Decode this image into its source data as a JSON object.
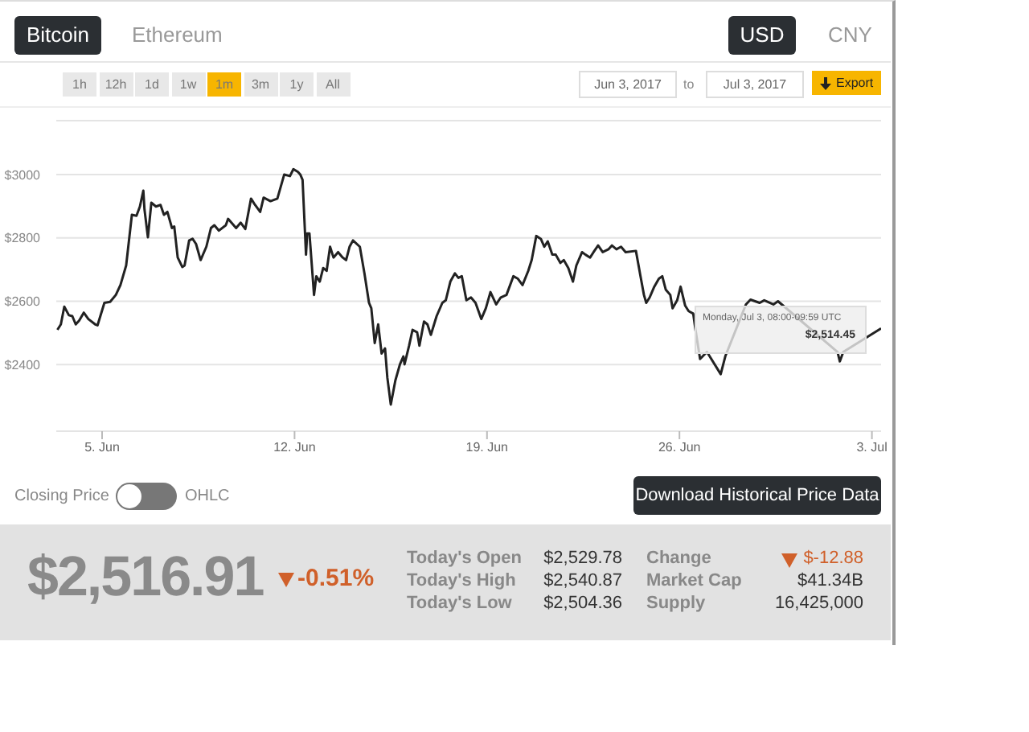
{
  "chart_data": {
    "type": "line",
    "x": [
      "2017-06-03T09:00",
      "2017-06-03T12:00",
      "2017-06-03T15:00",
      "2017-06-03T19:00",
      "2017-06-03T22:00",
      "2017-06-04T01:00",
      "2017-06-04T04:00",
      "2017-06-04T08:00",
      "2017-06-04T12:00",
      "2017-06-04T18:00",
      "2017-06-04T20:00",
      "2017-06-05T02:00",
      "2017-06-05T07:00",
      "2017-06-05T12:00",
      "2017-06-05T16:00",
      "2017-06-05T21:00",
      "2017-06-06T02:00",
      "2017-06-06T06:00",
      "2017-06-06T09:00",
      "2017-06-06T12:00",
      "2017-06-06T13:00",
      "2017-06-06T16:00",
      "2017-06-06T19:00",
      "2017-06-06T23:00",
      "2017-06-07T03:00",
      "2017-06-07T06:00",
      "2017-06-07T09:00",
      "2017-06-07T13:00",
      "2017-06-07T15:00",
      "2017-06-07T18:00",
      "2017-06-07T22:00",
      "2017-06-08T00:00",
      "2017-06-08T04:00",
      "2017-06-08T07:00",
      "2017-06-08T10:00",
      "2017-06-08T14:00",
      "2017-06-08T19:00",
      "2017-06-08T23:00",
      "2017-06-09T02:00",
      "2017-06-09T06:00",
      "2017-06-09T12:00",
      "2017-06-09T14:00",
      "2017-06-09T21:00",
      "2017-06-10T01:00",
      "2017-06-10T05:00",
      "2017-06-10T10:00",
      "2017-06-10T13:00",
      "2017-06-10T18:00",
      "2017-06-10T21:00",
      "2017-06-11T03:00",
      "2017-06-11T09:00",
      "2017-06-11T15:00",
      "2017-06-11T20:00",
      "2017-06-11T23:00",
      "2017-06-12T03:00",
      "2017-06-12T05:00",
      "2017-06-12T07:00",
      "2017-06-12T10:00",
      "2017-06-12T11:00",
      "2017-06-12T13:00",
      "2017-06-12T17:00",
      "2017-06-12T19:00",
      "2017-06-12T22:00",
      "2017-06-13T01:00",
      "2017-06-13T04:00",
      "2017-06-13T07:00",
      "2017-06-13T10:00",
      "2017-06-13T14:00",
      "2017-06-13T18:00",
      "2017-06-13T21:00",
      "2017-06-14T00:00",
      "2017-06-14T03:00",
      "2017-06-14T09:00",
      "2017-06-14T13:00",
      "2017-06-14T17:00",
      "2017-06-14T19:00",
      "2017-06-14T22:00",
      "2017-06-15T01:00",
      "2017-06-15T04:00",
      "2017-06-15T07:00",
      "2017-06-15T09:00",
      "2017-06-15T12:00",
      "2017-06-15T16:00",
      "2017-06-15T20:00",
      "2017-06-15T23:00",
      "2017-06-16T00:00",
      "2017-06-16T04:00",
      "2017-06-16T07:00",
      "2017-06-16T11:00",
      "2017-06-16T13:00",
      "2017-06-16T17:00",
      "2017-06-16T20:00",
      "2017-06-16T23:00",
      "2017-06-17T04:00",
      "2017-06-17T09:00",
      "2017-06-17T12:00",
      "2017-06-17T16:00",
      "2017-06-17T20:00",
      "2017-06-17T23:00",
      "2017-06-18T02:00",
      "2017-06-18T06:00",
      "2017-06-18T10:00",
      "2017-06-18T14:00",
      "2017-06-18T19:00",
      "2017-06-18T23:00",
      "2017-06-19T03:00",
      "2017-06-19T08:00",
      "2017-06-19T12:00",
      "2017-06-19T17:00",
      "2017-06-19T23:00",
      "2017-06-20T03:00",
      "2017-06-20T07:00",
      "2017-06-20T12:00",
      "2017-06-20T15:00",
      "2017-06-20T19:00",
      "2017-06-20T23:00",
      "2017-06-21T02:00",
      "2017-06-21T05:00",
      "2017-06-21T09:00",
      "2017-06-21T12:00",
      "2017-06-21T16:00",
      "2017-06-21T19:00",
      "2017-06-21T23:00",
      "2017-06-22T03:00",
      "2017-06-22T06:00",
      "2017-06-22T11:00",
      "2017-06-22T14:00",
      "2017-06-22T18:00",
      "2017-06-22T21:00",
      "2017-06-23T01:00",
      "2017-06-23T05:00",
      "2017-06-23T10:00",
      "2017-06-23T13:00",
      "2017-06-23T17:00",
      "2017-06-23T21:00",
      "2017-06-24T01:00",
      "2017-06-24T10:00",
      "2017-06-24T14:00",
      "2017-06-24T17:00",
      "2017-06-24T19:00",
      "2017-06-24T22:00",
      "2017-06-25T02:00",
      "2017-06-25T06:00",
      "2017-06-25T09:00",
      "2017-06-25T12:00",
      "2017-06-25T16:00",
      "2017-06-25T18:00",
      "2017-06-25T22:00",
      "2017-06-26T01:00",
      "2017-06-26T05:00",
      "2017-06-26T08:00",
      "2017-06-26T12:00",
      "2017-06-26T14:00",
      "2017-06-26T18:00",
      "2017-06-27T00:00",
      "2017-06-27T12:00",
      "2017-06-27T16:00",
      "2017-06-28T10:00",
      "2017-06-28T14:00",
      "2017-06-28T22:00",
      "2017-06-29T02:00",
      "2017-06-29T10:00",
      "2017-06-29T14:00",
      "2017-07-01T18:00",
      "2017-07-01T20:00",
      "2017-07-01T23:00",
      "2017-07-03T08:00"
    ],
    "values": [
      2510,
      2527,
      2583,
      2556,
      2553,
      2527,
      2539,
      2564,
      2544,
      2527,
      2524,
      2595,
      2598,
      2620,
      2651,
      2713,
      2873,
      2870,
      2899,
      2949,
      2890,
      2802,
      2911,
      2899,
      2904,
      2873,
      2882,
      2831,
      2836,
      2738,
      2708,
      2713,
      2792,
      2797,
      2781,
      2730,
      2772,
      2831,
      2840,
      2823,
      2840,
      2860,
      2831,
      2848,
      2828,
      2924,
      2907,
      2882,
      2927,
      2916,
      2924,
      3000,
      2995,
      3017,
      3008,
      3000,
      2983,
      2747,
      2814,
      2814,
      2620,
      2679,
      2662,
      2705,
      2696,
      2772,
      2738,
      2755,
      2738,
      2730,
      2772,
      2792,
      2772,
      2688,
      2595,
      2578,
      2468,
      2527,
      2435,
      2451,
      2359,
      2274,
      2350,
      2401,
      2426,
      2401,
      2460,
      2510,
      2502,
      2460,
      2536,
      2527,
      2494,
      2553,
      2595,
      2603,
      2662,
      2688,
      2674,
      2679,
      2603,
      2612,
      2595,
      2544,
      2578,
      2629,
      2590,
      2612,
      2620,
      2679,
      2671,
      2651,
      2696,
      2730,
      2806,
      2797,
      2772,
      2789,
      2747,
      2747,
      2721,
      2730,
      2705,
      2662,
      2713,
      2755,
      2747,
      2738,
      2755,
      2776,
      2755,
      2764,
      2776,
      2764,
      2772,
      2755,
      2759,
      2679,
      2620,
      2595,
      2612,
      2646,
      2671,
      2679,
      2637,
      2620,
      2578,
      2603,
      2646,
      2586,
      2569,
      2561,
      2510,
      2418,
      2440,
      2370,
      2426,
      2590,
      2605,
      2595,
      2603,
      2590,
      2600,
      2440,
      2410,
      2440,
      2514.45
    ],
    "color": "#222222",
    "xlim": [
      "2017-06-03T08:00",
      "2017-07-03T08:00"
    ],
    "xticks": [
      {
        "value": "2017-06-05",
        "label": "5. Jun"
      },
      {
        "value": "2017-06-12",
        "label": "12. Jun"
      },
      {
        "value": "2017-06-19",
        "label": "19. Jun"
      },
      {
        "value": "2017-06-26",
        "label": "26. Jun"
      },
      {
        "value": "2017-07-03",
        "label": "3. Jul"
      }
    ],
    "ylim": [
      2190,
      3170
    ],
    "yticks": [
      {
        "value": 2400,
        "label": "$2400"
      },
      {
        "value": 2600,
        "label": "$2600"
      },
      {
        "value": 2800,
        "label": "$2800"
      },
      {
        "value": 3000,
        "label": "$3000"
      }
    ],
    "grid": "y",
    "marker": "none",
    "line_style": "solid",
    "annotations": [
      "Bitcoin",
      "Ethereum",
      "USD",
      "CNY",
      "1h",
      "12h",
      "1d",
      "1w",
      "1m",
      "3m",
      "1y",
      "All",
      "Jun 3, 2017",
      "to",
      "Jul 3, 2017",
      "Export",
      "Closing Price",
      "OHLC",
      "Download Historical Price Data",
      "$2,516.91",
      "-0.51%",
      "Today's Open",
      "$2,529.78",
      "Today's High",
      "$2,540.87",
      "Today's Low",
      "$2,504.36",
      "Change",
      "$-12.88",
      "Market Cap",
      "$41.34B",
      "Supply",
      "16,425,000",
      "Monday, Jul 3, 08:00-09:59 UTC",
      "$2,514.45"
    ]
  }
}
